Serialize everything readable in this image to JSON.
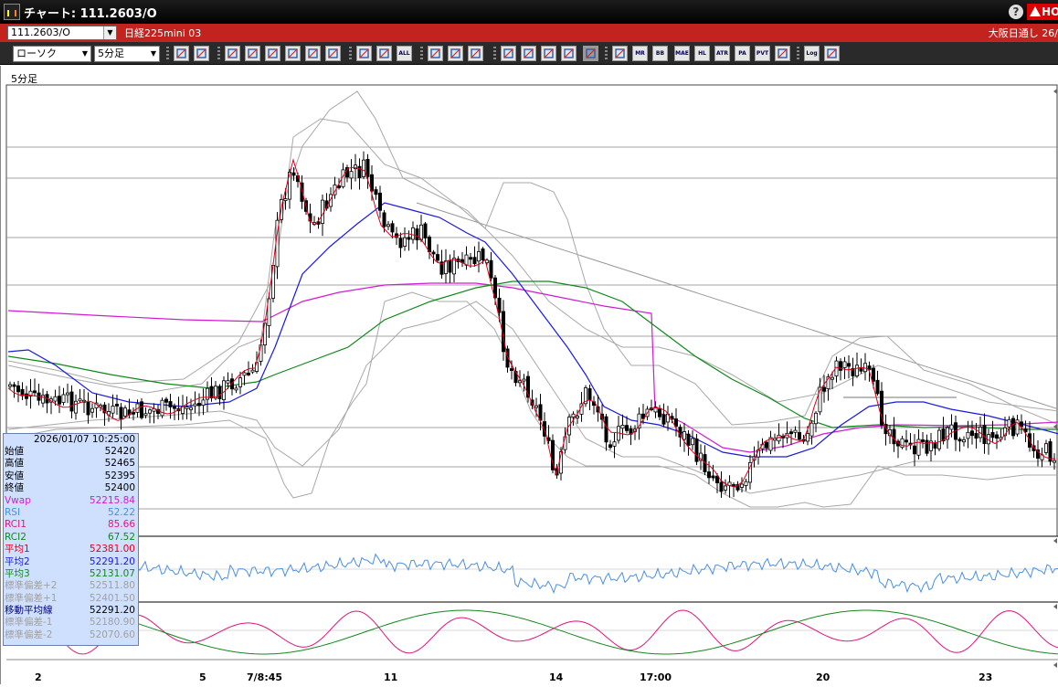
{
  "window": {
    "title": "チャート: 111.2603/O",
    "help": "?",
    "hot": "HO"
  },
  "symbolbar": {
    "symbol": "111.2603/O",
    "instrument": "日経225mini 03",
    "market": "大阪日通し  26/"
  },
  "toolbar": {
    "chart_type": "ローソク",
    "interval": "5分足",
    "buttons": [
      "zoom-icon",
      "scale-icon",
      "draw-line-icon",
      "fibonacci-icon",
      "cursor-icon",
      "undo-icon",
      "text-icon",
      "trash-icon",
      "bar-width-narrow-icon",
      "bar-width-wide-icon",
      "all-icon",
      "settings-icon",
      "wrench-icon",
      "color-icon",
      "import-icon",
      "search-icon",
      "compare-icon",
      "delete-icon",
      "disabled-icon",
      "ma-icon",
      "mr-icon",
      "bb-icon",
      "mae-icon",
      "hl-icon",
      "atr-icon",
      "pa-icon",
      "pvt-icon",
      "square-icon",
      "log-icon",
      "exit-icon"
    ],
    "button_labels": {
      "all": "ALL",
      "mr": "MR",
      "bb": "BB",
      "mae": "MAE",
      "hl": "HL",
      "atr": "ATR",
      "pa": "PA",
      "pvt": "PVT",
      "log": "Log"
    }
  },
  "chart": {
    "interval_label": "5分足",
    "x_labels": [
      "2",
      "5",
      "7/8:45",
      "11",
      "14",
      "17:00",
      "20",
      "23"
    ],
    "colors": {
      "ma1": "#e0001c",
      "ma2": "#1a1ae0",
      "ma3": "#11881a",
      "vwap": "#d21ad2",
      "bands": "#a8a8a8",
      "rsi": "#4a8fe0",
      "rci1": "#e0157a",
      "rci2": "#11881a"
    }
  },
  "info_panel": {
    "datetime": "2026/01/07  10:25:00",
    "rows": [
      {
        "label": "始値",
        "value": "52420",
        "color": "#000"
      },
      {
        "label": "高値",
        "value": "52465",
        "color": "#000"
      },
      {
        "label": "安値",
        "value": "52395",
        "color": "#000"
      },
      {
        "label": "終値",
        "value": "52400",
        "color": "#000"
      },
      {
        "label": "Vwap",
        "value": "52215.84",
        "color": "#d21ad2"
      },
      {
        "label": "RSI",
        "value": "52.22",
        "color": "#4a8fe0"
      },
      {
        "label": "RCI1",
        "value": "85.66",
        "color": "#e0157a"
      },
      {
        "label": "RCI2",
        "value": "67.52",
        "color": "#11881a"
      },
      {
        "label": "平均1",
        "value": "52381.00",
        "color": "#e0001c"
      },
      {
        "label": "平均2",
        "value": "52291.20",
        "color": "#1a1ae0"
      },
      {
        "label": "平均3",
        "value": "52131.07",
        "color": "#11881a"
      },
      {
        "label": "標準偏差+2",
        "value": "52511.80",
        "color": "#a0a0a0"
      },
      {
        "label": "標準偏差+1",
        "value": "52401.50",
        "color": "#a0a0a0"
      },
      {
        "label": "移動平均線",
        "value": "52291.20",
        "color": "#00007a"
      },
      {
        "label": "標準偏差-1",
        "value": "52180.90",
        "color": "#a0a0a0"
      },
      {
        "label": "標準偏差-2",
        "value": "52070.60",
        "color": "#a0a0a0"
      }
    ]
  }
}
